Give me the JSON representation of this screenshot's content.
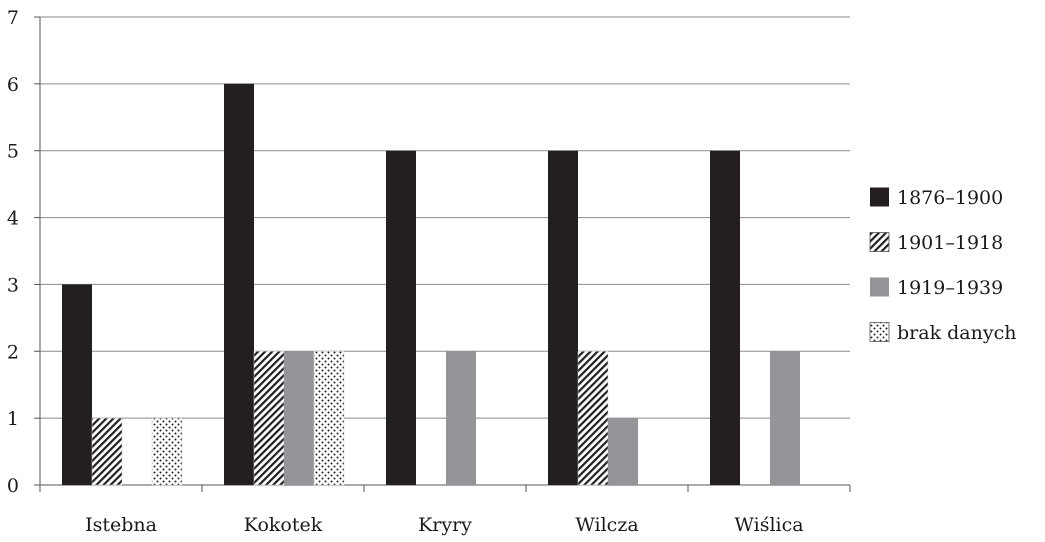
{
  "chart_data": {
    "type": "bar",
    "title": "",
    "xlabel": "",
    "ylabel": "",
    "ylim": [
      0,
      7
    ],
    "yticks": [
      0,
      1,
      2,
      3,
      4,
      5,
      6,
      7
    ],
    "grid": "horizontal",
    "legend_position": "right",
    "categories": [
      "Istebna",
      "Kokotek",
      "Kryry",
      "Wilcza",
      "Wiślica"
    ],
    "series": [
      {
        "name": "1876–1900",
        "values": [
          3,
          6,
          5,
          5,
          5
        ],
        "fill": "solid",
        "color": "#231f20"
      },
      {
        "name": "1901–1918",
        "values": [
          1,
          2,
          0,
          2,
          0
        ],
        "fill": "diagonal-hatch",
        "color": "#231f20"
      },
      {
        "name": "1919–1939",
        "values": [
          0,
          2,
          2,
          1,
          2
        ],
        "fill": "solid",
        "color": "#939598"
      },
      {
        "name": "brak danych",
        "values": [
          1,
          2,
          0,
          0,
          0
        ],
        "fill": "dots",
        "color": "#231f20"
      }
    ]
  }
}
